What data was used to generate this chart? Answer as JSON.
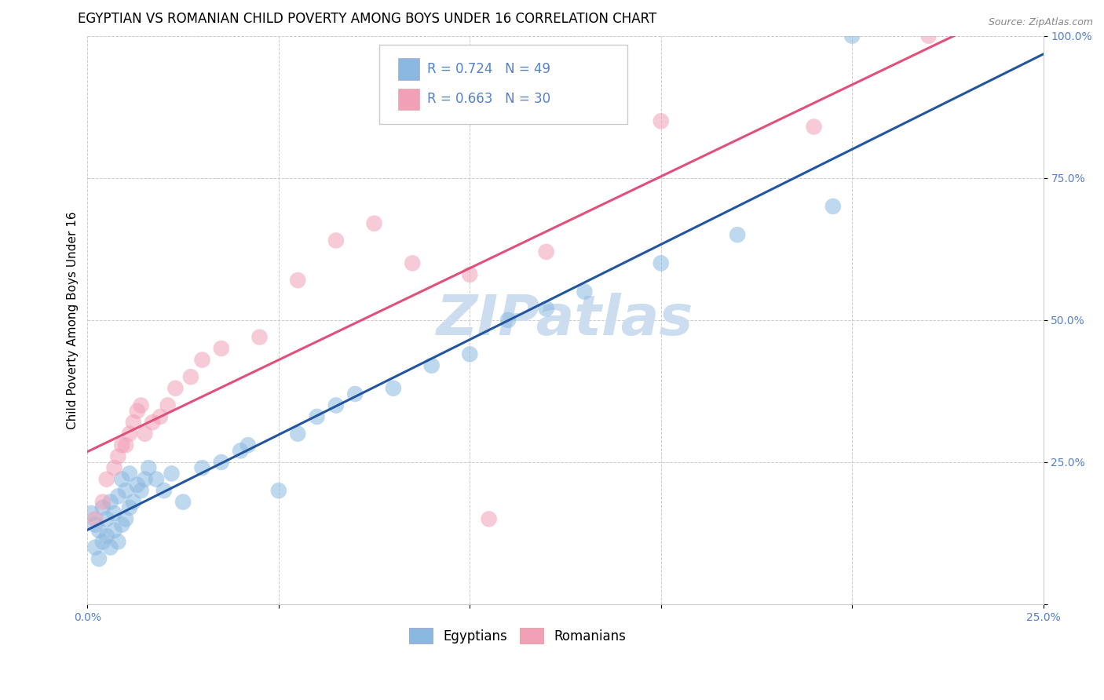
{
  "title": "EGYPTIAN VS ROMANIAN CHILD POVERTY AMONG BOYS UNDER 16 CORRELATION CHART",
  "source": "Source: ZipAtlas.com",
  "ylabel": "Child Poverty Among Boys Under 16",
  "xlim": [
    0,
    0.25
  ],
  "ylim": [
    -0.02,
    1.08
  ],
  "plot_ylim": [
    0,
    1.0
  ],
  "xticks": [
    0.0,
    0.05,
    0.1,
    0.15,
    0.2,
    0.25
  ],
  "yticks": [
    0.0,
    0.25,
    0.5,
    0.75,
    1.0
  ],
  "xtick_show": [
    0,
    5
  ],
  "egyptian_color": "#8ab8e0",
  "romanian_color": "#f2a0b8",
  "egyptian_line_color": "#2255a0",
  "romanian_line_color": "#e0507a",
  "watermark": "ZIPatlas",
  "watermark_color": "#ccddf0",
  "egyptians_x": [
    0.001,
    0.002,
    0.002,
    0.003,
    0.003,
    0.004,
    0.004,
    0.005,
    0.005,
    0.006,
    0.006,
    0.007,
    0.007,
    0.008,
    0.008,
    0.009,
    0.009,
    0.01,
    0.01,
    0.011,
    0.011,
    0.012,
    0.013,
    0.014,
    0.015,
    0.016,
    0.018,
    0.02,
    0.022,
    0.025,
    0.03,
    0.035,
    0.04,
    0.042,
    0.05,
    0.055,
    0.06,
    0.065,
    0.07,
    0.08,
    0.09,
    0.1,
    0.11,
    0.12,
    0.13,
    0.15,
    0.17,
    0.195,
    0.2
  ],
  "egyptians_y": [
    0.16,
    0.1,
    0.14,
    0.08,
    0.13,
    0.11,
    0.17,
    0.12,
    0.15,
    0.1,
    0.18,
    0.13,
    0.16,
    0.11,
    0.19,
    0.14,
    0.22,
    0.15,
    0.2,
    0.17,
    0.23,
    0.18,
    0.21,
    0.2,
    0.22,
    0.24,
    0.22,
    0.2,
    0.23,
    0.18,
    0.24,
    0.25,
    0.27,
    0.28,
    0.2,
    0.3,
    0.33,
    0.35,
    0.37,
    0.38,
    0.42,
    0.44,
    0.5,
    0.52,
    0.55,
    0.6,
    0.65,
    0.7,
    1.0
  ],
  "romanians_x": [
    0.002,
    0.004,
    0.005,
    0.007,
    0.008,
    0.009,
    0.01,
    0.011,
    0.012,
    0.013,
    0.014,
    0.015,
    0.017,
    0.019,
    0.021,
    0.023,
    0.027,
    0.03,
    0.035,
    0.045,
    0.055,
    0.065,
    0.075,
    0.085,
    0.1,
    0.105,
    0.12,
    0.15,
    0.19,
    0.22
  ],
  "romanians_y": [
    0.15,
    0.18,
    0.22,
    0.24,
    0.26,
    0.28,
    0.28,
    0.3,
    0.32,
    0.34,
    0.35,
    0.3,
    0.32,
    0.33,
    0.35,
    0.38,
    0.4,
    0.43,
    0.45,
    0.47,
    0.57,
    0.64,
    0.67,
    0.6,
    0.58,
    0.15,
    0.62,
    0.85,
    0.84,
    1.0
  ],
  "egyptian_r": 0.724,
  "romanian_r": 0.663,
  "n_egyptian": 49,
  "n_romanian": 30,
  "title_fontsize": 12,
  "axis_label_fontsize": 11,
  "tick_fontsize": 10,
  "legend_fontsize": 12,
  "watermark_fontsize": 52,
  "tick_color": "#5580cc"
}
